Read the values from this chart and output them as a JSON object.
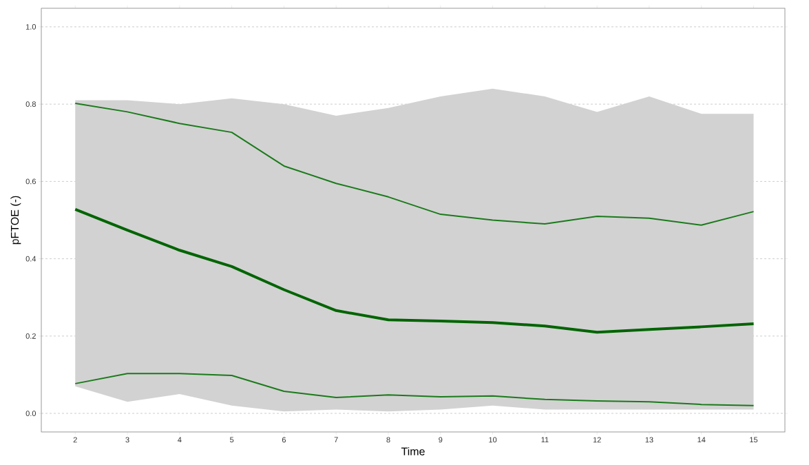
{
  "chart_data": {
    "type": "line",
    "xlabel": "Time",
    "ylabel": "pFTOE (-)",
    "x": [
      2,
      3,
      4,
      5,
      6,
      7,
      8,
      9,
      10,
      11,
      12,
      13,
      14,
      15
    ],
    "series": [
      {
        "color": "#006400",
        "values": [
          0.528,
          0.474,
          0.422,
          0.38,
          0.32,
          0.266,
          0.242,
          0.239,
          0.235,
          0.226,
          0.21,
          0.217,
          0.224,
          0.232
        ],
        "lower": [
          0.07,
          0.03,
          0.05,
          0.02,
          0.005,
          0.01,
          0.005,
          0.01,
          0.02,
          0.01,
          0.01,
          0.01,
          0.01,
          0.01
        ],
        "upper": [
          0.81,
          0.81,
          0.8,
          0.815,
          0.8,
          0.77,
          0.79,
          0.82,
          0.84,
          0.82,
          0.78,
          0.82,
          0.775,
          0.775
        ]
      },
      {
        "color": "#1a7a1a",
        "values": [
          0.802,
          0.78,
          0.75,
          0.727,
          0.64,
          0.595,
          0.56,
          0.515,
          0.5,
          0.49,
          0.51,
          0.505,
          0.487,
          0.522
        ]
      },
      {
        "color": "#1a7a1a",
        "values": [
          0.077,
          0.103,
          0.103,
          0.098,
          0.057,
          0.041,
          0.048,
          0.043,
          0.045,
          0.036,
          0.032,
          0.03,
          0.023,
          0.02
        ]
      }
    ],
    "xlim": [
      1.35,
      15.6
    ],
    "ylim": [
      -0.048,
      1.048
    ],
    "xticks": [
      2,
      3,
      4,
      5,
      6,
      7,
      8,
      9,
      10,
      11,
      12,
      13,
      14,
      15
    ],
    "yticks": [
      {
        "value": 0,
        "label": "0.0"
      },
      {
        "value": 0.2,
        "label": "0.2"
      },
      {
        "value": 0.4,
        "label": "0.4"
      },
      {
        "value": 0.6,
        "label": "0.6"
      },
      {
        "value": 0.8,
        "label": "0.8"
      },
      {
        "value": 1,
        "label": "1.0"
      }
    ],
    "grid": "y",
    "marker": "none",
    "line_style": "solid"
  }
}
